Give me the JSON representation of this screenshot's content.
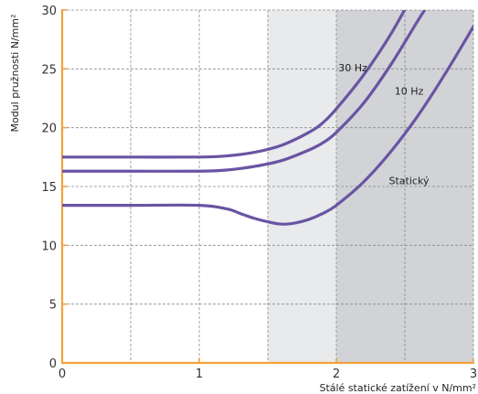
{
  "chart_data": {
    "type": "line",
    "title": "",
    "xlabel": "Stálé statické zatížení v N/mm²",
    "ylabel": "Modul pružnosti N/mm²",
    "xlim": [
      0,
      3
    ],
    "ylim": [
      0,
      30
    ],
    "x_ticks": [
      0,
      1,
      2,
      3
    ],
    "x_tick_labels": [
      "0",
      "1",
      "2",
      "3"
    ],
    "y_ticks": [
      0,
      5,
      10,
      15,
      20,
      25,
      30
    ],
    "y_tick_labels": [
      "0",
      "5",
      "10",
      "15",
      "20",
      "25",
      "30"
    ],
    "grid": true,
    "legend": "none",
    "shaded_regions": [
      {
        "x": [
          1.5,
          2.0
        ],
        "color": "#e8eaec"
      },
      {
        "x": [
          2.0,
          3.0
        ],
        "color": "#d1d3d7"
      }
    ],
    "colors": {
      "line": "#6a54a2",
      "axis": "#f2a23a",
      "grid": "#8a8a8a"
    },
    "series": [
      {
        "name": "30 Hz",
        "x": [
          0,
          0.5,
          1.0,
          1.2,
          1.4,
          1.6,
          1.8,
          1.9,
          2.0,
          2.2,
          2.4,
          2.6
        ],
        "y": [
          17.5,
          17.5,
          17.5,
          17.6,
          17.9,
          18.5,
          19.6,
          20.4,
          21.6,
          24.5,
          28.0,
          32.2
        ]
      },
      {
        "name": "10 Hz",
        "x": [
          0,
          0.5,
          1.0,
          1.2,
          1.4,
          1.6,
          1.8,
          1.9,
          2.0,
          2.2,
          2.4,
          2.6,
          2.7
        ],
        "y": [
          16.3,
          16.3,
          16.3,
          16.4,
          16.7,
          17.2,
          18.1,
          18.7,
          19.6,
          22.1,
          25.4,
          29.2,
          31.0
        ]
      },
      {
        "name": "Statický",
        "x": [
          0,
          0.5,
          1.0,
          1.2,
          1.3,
          1.4,
          1.5,
          1.6,
          1.7,
          1.8,
          1.9,
          2.0,
          2.2,
          2.4,
          2.6,
          2.8,
          3.0
        ],
        "y": [
          13.4,
          13.4,
          13.4,
          13.1,
          12.7,
          12.3,
          12.0,
          11.8,
          11.9,
          12.2,
          12.7,
          13.4,
          15.4,
          18.0,
          21.1,
          24.7,
          28.6
        ]
      }
    ],
    "annotations": [
      {
        "text": "30 Hz",
        "x": 2.12,
        "y": 24.8
      },
      {
        "text": "10 Hz",
        "x": 2.53,
        "y": 22.8
      },
      {
        "text": "Statický",
        "x": 2.53,
        "y": 15.2
      }
    ]
  }
}
